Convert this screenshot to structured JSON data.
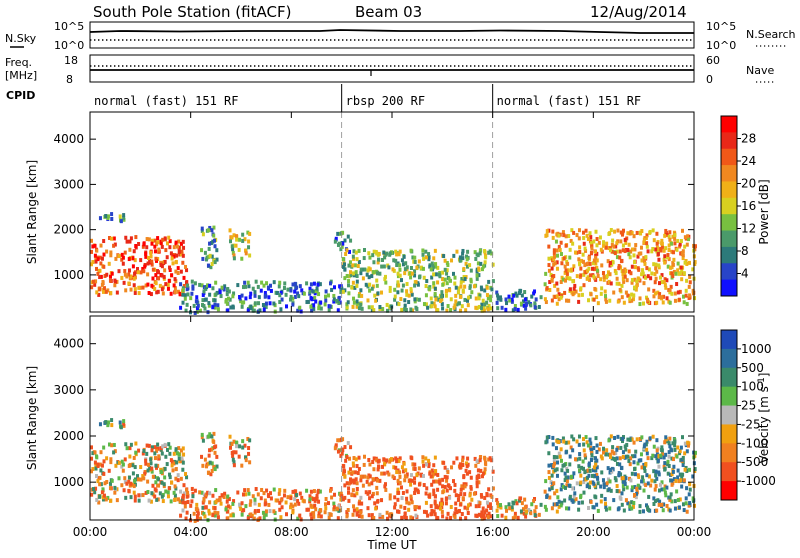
{
  "header": {
    "station": "South Pole Station (fitACF)",
    "beam": "Beam 03",
    "date": "12/Aug/2014"
  },
  "nsky": {
    "left_label": "N.Sky",
    "left_top": "10^5",
    "left_bottom": "10^0",
    "right_top": "10^5",
    "right_bottom": "10^0",
    "right_label": "N.Search"
  },
  "freq": {
    "label_line1": "Freq.",
    "label_line2": "[MHz]",
    "left_top": "18",
    "left_bottom": "8",
    "right_top": "60",
    "right_bottom": "0",
    "right_label": "Nave",
    "cpid_label": "CPID"
  },
  "cpid_segments": [
    {
      "start": 0,
      "end": 10,
      "text": "normal (fast) 151 RF"
    },
    {
      "start": 10,
      "end": 16,
      "text": "rbsp 200 RF"
    },
    {
      "start": 16,
      "end": 24,
      "text": "normal (fast) 151 RF"
    }
  ],
  "power_colorbar": {
    "label": "Power [dB]",
    "ticks": [
      "4",
      "8",
      "12",
      "16",
      "20",
      "24",
      "28"
    ],
    "colors": [
      "#1010ff",
      "#2844c8",
      "#2c7a7a",
      "#4a9a6a",
      "#78c040",
      "#d8d020",
      "#f0b018",
      "#f08820",
      "#f05818",
      "#e82818",
      "#ff0000"
    ]
  },
  "velocity_colorbar": {
    "label": "Velocity [m s^-1]",
    "label_main": "Velocity [m s",
    "label_sup": "-1",
    "label_end": "]",
    "ticks": [
      "1000",
      "500",
      "100",
      "25",
      "-25",
      "-100",
      "-500",
      "-1000"
    ],
    "colors": [
      "#1f4ab8",
      "#2c6e9c",
      "#3a8a6a",
      "#5cb848",
      "#b8b8b8",
      "#f0a010",
      "#f08020",
      "#f05020",
      "#ff0000"
    ]
  },
  "chart_data": {
    "type": "heatmap",
    "title": "South Pole Station (fitACF)  Beam 03  12/Aug/2014",
    "xlabel": "Time UT",
    "ylabel": "Slant Range [km]",
    "x_ticks": [
      "00:00",
      "04:00",
      "08:00",
      "12:00",
      "16:00",
      "20:00",
      "00:00"
    ],
    "xlim": [
      0,
      24
    ],
    "ylim": [
      180,
      4600
    ],
    "y_ticks": [
      1000,
      2000,
      3000,
      4000
    ],
    "panels": [
      {
        "name": "power",
        "colorbar_label": "Power [dB]",
        "clim": [
          0,
          30
        ]
      },
      {
        "name": "velocity",
        "colorbar_label": "Velocity [m s^-1]",
        "clim": [
          -1000,
          1000
        ]
      }
    ],
    "echo_regions": [
      {
        "t0": 0.0,
        "t1": 3.8,
        "r0": 600,
        "r1": 1900,
        "power": 24,
        "velocity": -60
      },
      {
        "t0": 0.3,
        "t1": 1.3,
        "r0": 2200,
        "r1": 2450,
        "power": 8,
        "velocity": 20
      },
      {
        "t0": 4.3,
        "t1": 5.0,
        "r0": 1200,
        "r1": 2100,
        "power": 9,
        "velocity": -120
      },
      {
        "t0": 5.5,
        "t1": 6.3,
        "r0": 1400,
        "r1": 2050,
        "power": 14,
        "velocity": -150
      },
      {
        "t0": 3.5,
        "t1": 10.0,
        "r0": 200,
        "r1": 900,
        "power": 6,
        "velocity": -180
      },
      {
        "t0": 9.6,
        "t1": 10.3,
        "r0": 1550,
        "r1": 2000,
        "power": 8,
        "velocity": -150
      },
      {
        "t0": 10.0,
        "t1": 16.0,
        "r0": 250,
        "r1": 1600,
        "power": 12,
        "velocity": -250
      },
      {
        "t0": 16.0,
        "t1": 18.0,
        "r0": 250,
        "r1": 700,
        "power": 5,
        "velocity": -120
      },
      {
        "t0": 18.0,
        "t1": 24.0,
        "r0": 400,
        "r1": 2050,
        "power": 20,
        "velocity": 120
      }
    ],
    "cpid_change_times": [
      10,
      16
    ]
  }
}
